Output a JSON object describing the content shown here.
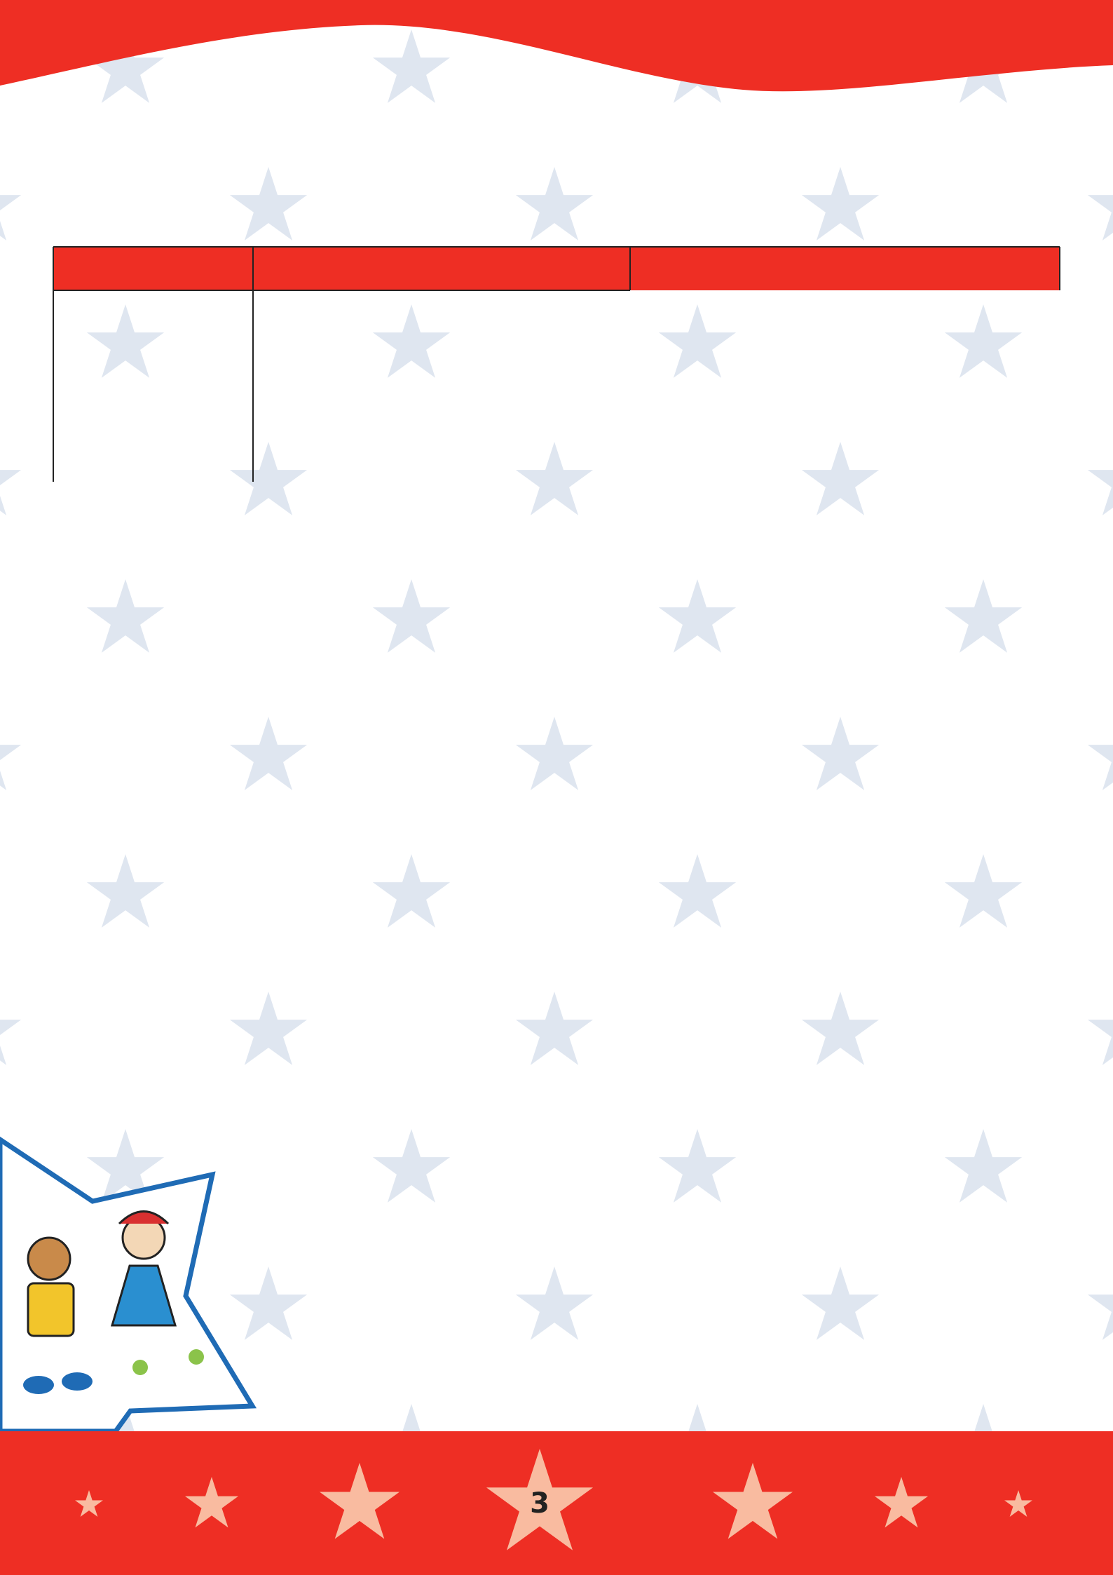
{
  "footer": {
    "page_number": 3
  }
}
